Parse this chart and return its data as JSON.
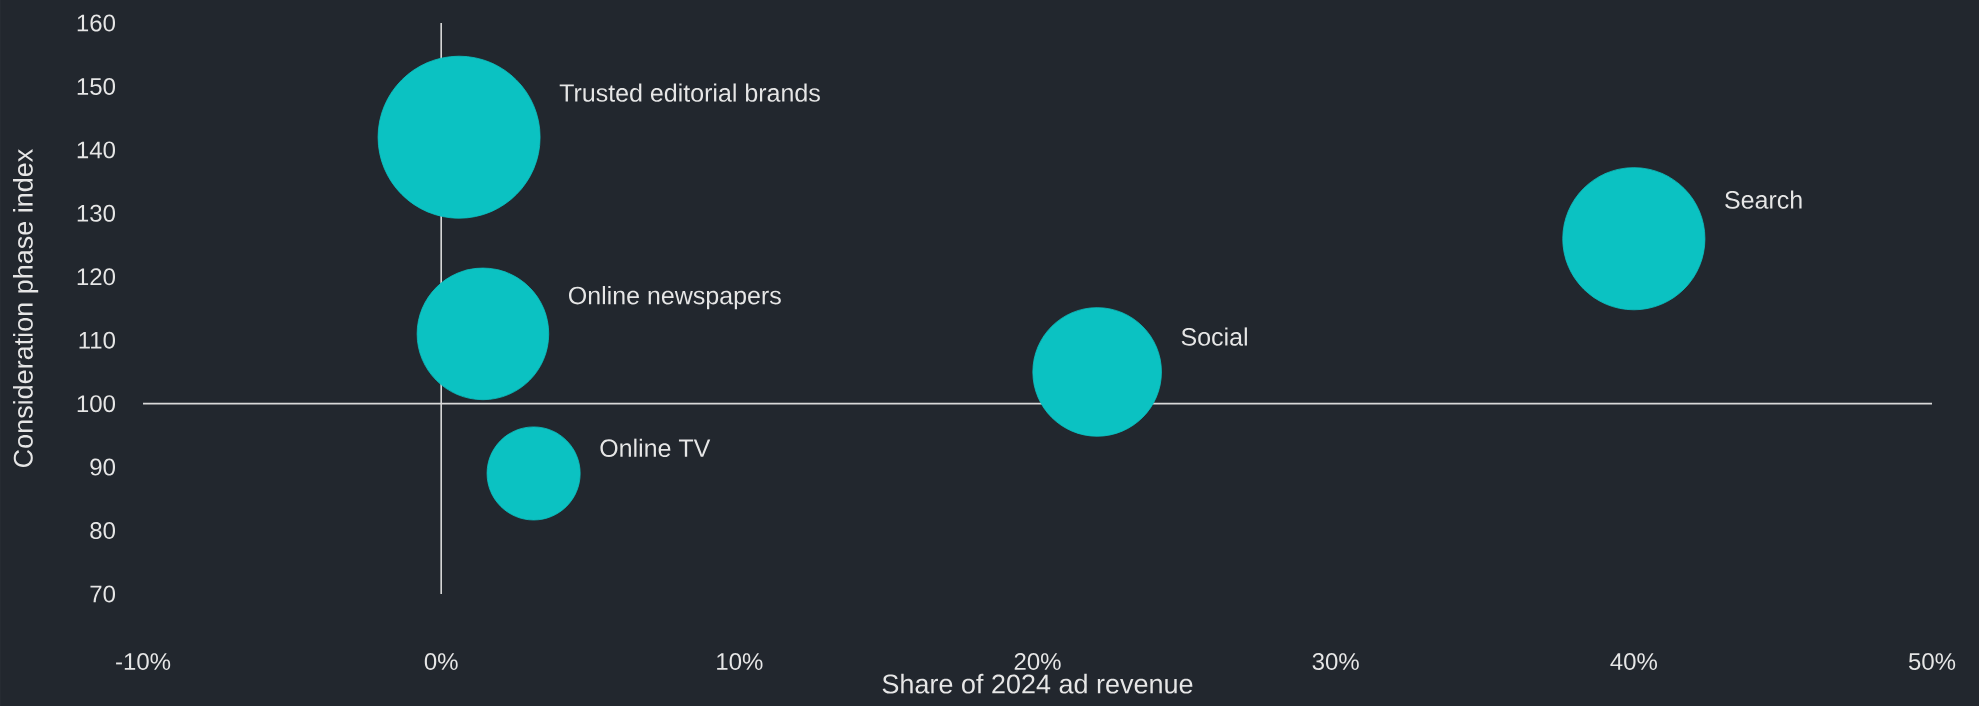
{
  "chart_data": {
    "type": "bubble",
    "xlabel": "Share of 2024 ad revenue",
    "ylabel": "Consideration phase index",
    "xlim": [
      -10,
      50
    ],
    "ylim": [
      70,
      160
    ],
    "xticks": [
      {
        "value": -10,
        "label": "-10%"
      },
      {
        "value": 0,
        "label": "0%"
      },
      {
        "value": 10,
        "label": "10%"
      },
      {
        "value": 20,
        "label": "20%"
      },
      {
        "value": 30,
        "label": "30%"
      },
      {
        "value": 40,
        "label": "40%"
      },
      {
        "value": 50,
        "label": "50%"
      }
    ],
    "yticks": [
      70,
      80,
      90,
      100,
      110,
      120,
      130,
      140,
      150,
      160
    ],
    "grid": false,
    "ref_lines": [
      {
        "axis": "x",
        "value": 0,
        "color": "#d9d9d9"
      },
      {
        "axis": "y",
        "value": 100,
        "color": "#d9d9d9"
      }
    ],
    "series": [
      {
        "name": "Trusted editorial brands",
        "color": "#0bc2c2",
        "x": [
          0.6
        ],
        "values": [
          142
        ],
        "sizes": [
          1
        ]
      },
      {
        "name": "Online newspapers",
        "color": "#0bc2c2",
        "x": [
          1.4
        ],
        "values": [
          111
        ],
        "sizes": [
          0.66
        ]
      },
      {
        "name": "Online TV",
        "color": "#0bc2c2",
        "x": [
          3.1
        ],
        "values": [
          89
        ],
        "sizes": [
          0.33
        ]
      },
      {
        "name": "Social",
        "color": "#0bc2c2",
        "x": [
          22.0
        ],
        "values": [
          105
        ],
        "sizes": [
          0.63
        ]
      },
      {
        "name": "Search",
        "color": "#0bc2c2",
        "x": [
          40.0
        ],
        "values": [
          126
        ],
        "sizes": [
          0.77
        ]
      }
    ]
  }
}
